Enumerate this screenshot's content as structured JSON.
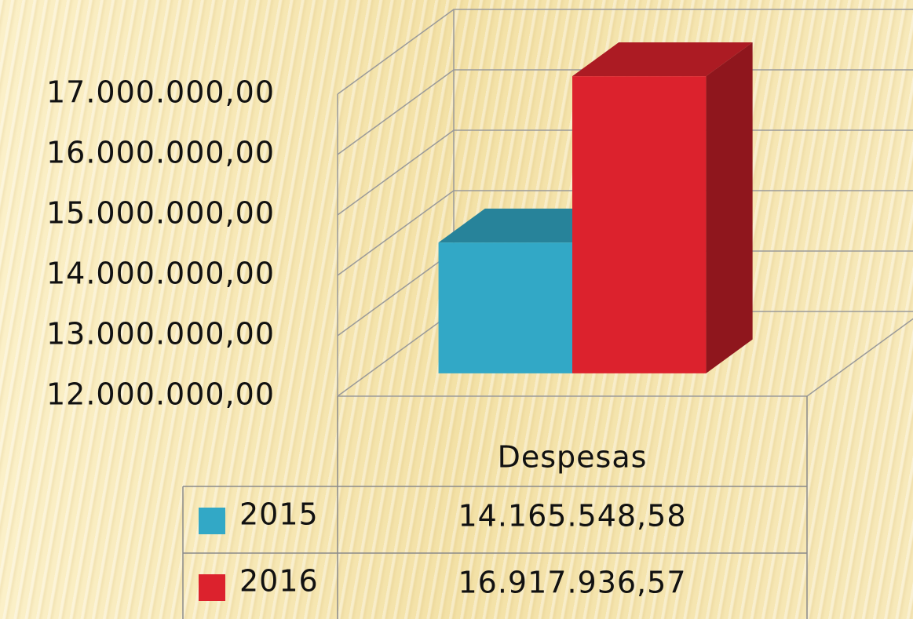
{
  "chart_data": {
    "type": "bar",
    "categories": [
      "Despesas"
    ],
    "series": [
      {
        "name": "2015",
        "color": "#32a8c6",
        "values": [
          14165548.58
        ],
        "value_labels": [
          "14.165.548,58"
        ]
      },
      {
        "name": "2016",
        "color": "#dc222d",
        "values": [
          16917936.57
        ],
        "value_labels": [
          "16.917.936,57"
        ]
      }
    ],
    "ylim": [
      12000000,
      17000000
    ],
    "yticks": [
      {
        "value": 12000000,
        "label": "12.000.000,00"
      },
      {
        "value": 13000000,
        "label": "13.000.000,00"
      },
      {
        "value": 14000000,
        "label": "14.000.000,00"
      },
      {
        "value": 15000000,
        "label": "15.000.000,00"
      },
      {
        "value": 16000000,
        "label": "16.000.000,00"
      },
      {
        "value": 17000000,
        "label": "17.000.000,00"
      }
    ],
    "grid": true
  }
}
